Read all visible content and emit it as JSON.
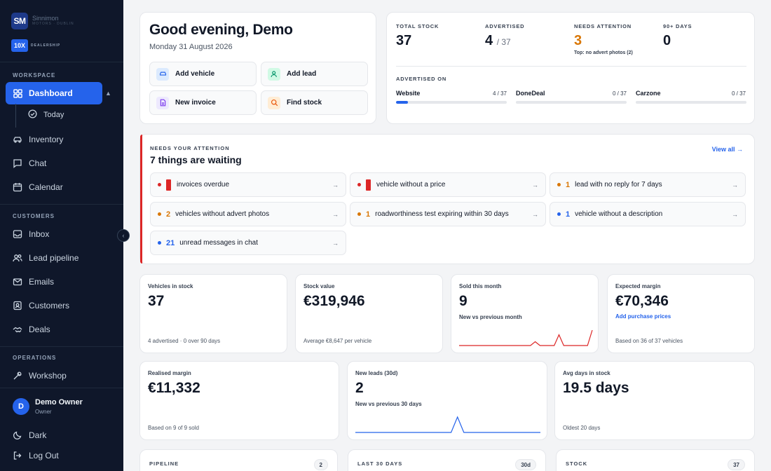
{
  "brand": {
    "logo_initials": "SM",
    "logo_name": "Sinnimon",
    "logo_tagline": "MOTORS · DUBLIN",
    "badge": "10X",
    "badge_label": "DEALERSHIP"
  },
  "sidebar": {
    "workspace_label": "WORKSPACE",
    "customers_label": "CUSTOMERS",
    "operations_label": "OPERATIONS",
    "items": {
      "dashboard": "Dashboard",
      "today": "Today",
      "inventory": "Inventory",
      "chat": "Chat",
      "calendar": "Calendar",
      "inbox": "Inbox",
      "lead_pipeline": "Lead pipeline",
      "emails": "Emails",
      "customers": "Customers",
      "deals": "Deals",
      "workshop": "Workshop"
    },
    "user": {
      "initial": "D",
      "name": "Demo Owner",
      "role": "Owner"
    },
    "dark": "Dark",
    "logout": "Log Out"
  },
  "greeting": {
    "title": "Good evening, Demo",
    "date": "Monday 31 August 2026",
    "actions": [
      "Add vehicle",
      "Add lead",
      "New invoice",
      "Find stock"
    ]
  },
  "kpis": {
    "total_stock": {
      "label": "TOTAL STOCK",
      "value": "37"
    },
    "advertised": {
      "label": "ADVERTISED",
      "value": "4",
      "of": "/ 37"
    },
    "needs_attention": {
      "label": "NEEDS ATTENTION",
      "value": "3",
      "sub": "Top: no advert photos (2)"
    },
    "ninety_days": {
      "label": "90+ DAYS",
      "value": "0"
    },
    "advertised_on_label": "ADVERTISED ON",
    "channels": [
      {
        "name": "Website",
        "count": "4 / 37",
        "fraction": 0.108
      },
      {
        "name": "DoneDeal",
        "count": "0 / 37",
        "fraction": 0
      },
      {
        "name": "Carzone",
        "count": "0 / 37",
        "fraction": 0
      }
    ]
  },
  "attention": {
    "eyebrow": "NEEDS YOUR ATTENTION",
    "title": "7 things are waiting",
    "view_all": "View all →",
    "items": [
      {
        "num": "",
        "text": "invoices overdue",
        "kind": "red"
      },
      {
        "num": "",
        "text": "vehicle without a price",
        "kind": "red"
      },
      {
        "num": "1",
        "text": "lead with no reply for 7 days",
        "kind": "orange"
      },
      {
        "num": "2",
        "text": "vehicles without advert photos",
        "kind": "orange"
      },
      {
        "num": "1",
        "text": "roadworthiness test expiring within 30 days",
        "kind": "orange"
      },
      {
        "num": "1",
        "text": "vehicle without a description",
        "kind": "blue"
      },
      {
        "num": "21",
        "text": "unread messages in chat",
        "kind": "blue"
      }
    ],
    "colors": {
      "red": "#dc2626",
      "orange": "#d97706",
      "blue": "#2563eb"
    }
  },
  "stats": {
    "vehicles": {
      "label": "Vehicles in stock",
      "value": "37",
      "foot": "4 advertised · 0 over 90 days"
    },
    "stock_value": {
      "label": "Stock value",
      "value": "€319,946",
      "foot": "Average €8,647 per vehicle"
    },
    "sold": {
      "label": "Sold this month",
      "value": "9",
      "compare": "New vs previous month",
      "spark": [
        0,
        0,
        0,
        0,
        0,
        0,
        0,
        0,
        0,
        0,
        0,
        0,
        0,
        0,
        0,
        0,
        0.25,
        0,
        0,
        0,
        0,
        0.7,
        0,
        0,
        0,
        0,
        0,
        0,
        1
      ]
    },
    "margin": {
      "label": "Expected margin",
      "value": "€70,346",
      "link": "Add purchase prices",
      "foot": "Based on 36 of 37 vehicles"
    },
    "realised": {
      "label": "Realised margin",
      "value": "€11,332",
      "foot": "Based on 9 of 9 sold"
    },
    "leads": {
      "label": "New leads (30d)",
      "value": "2",
      "compare": "New vs previous 30 days",
      "spark": [
        0,
        0,
        0,
        0,
        0,
        0,
        0,
        0,
        0,
        0,
        0,
        0,
        0,
        0,
        0,
        0,
        1,
        0,
        0,
        0,
        0,
        0,
        0,
        0,
        0,
        0,
        0,
        0,
        0,
        0
      ]
    },
    "avg_days": {
      "label": "Avg days in stock",
      "value": "19.5 days",
      "foot": "Oldest 20 days"
    }
  },
  "bottom": {
    "pipeline": {
      "label": "PIPELINE",
      "count": "2"
    },
    "last30": {
      "label": "LAST 30 DAYS",
      "count": "30d"
    },
    "stock": {
      "label": "STOCK",
      "count": "37"
    }
  }
}
